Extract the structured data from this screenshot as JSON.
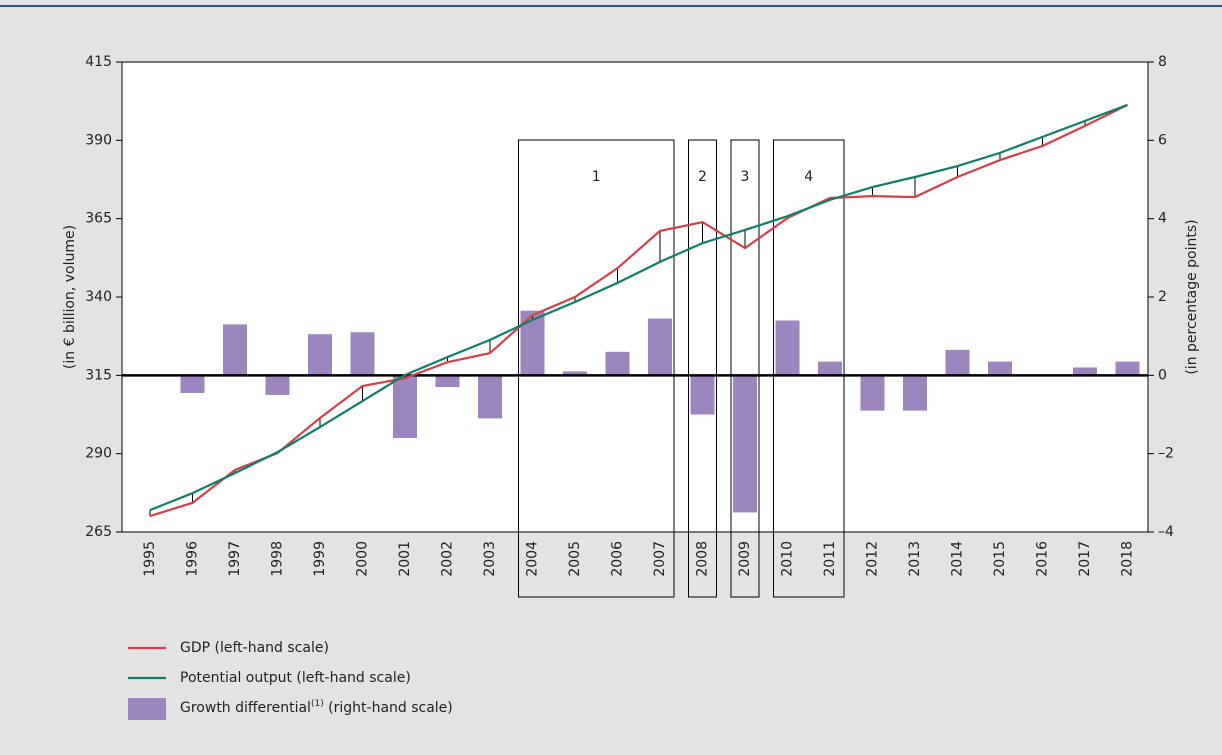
{
  "chart_data": {
    "type": "combo",
    "categories": [
      "1995",
      "1996",
      "1997",
      "1998",
      "1999",
      "2000",
      "2001",
      "2002",
      "2003",
      "2004",
      "2005",
      "2006",
      "2007",
      "2008",
      "2009",
      "2010",
      "2011",
      "2012",
      "2013",
      "2014",
      "2015",
      "2016",
      "2017",
      "2018"
    ],
    "ylabel": "(in € billion, volume)",
    "y2label": "(in percentage points)",
    "ylim": [
      265,
      415
    ],
    "yticks": [
      265,
      290,
      315,
      340,
      365,
      390,
      415
    ],
    "y2lim": [
      -4,
      8
    ],
    "y2ticks": [
      {
        "value": -4,
        "label": "–4"
      },
      {
        "value": -2,
        "label": "–2"
      },
      0,
      2,
      4,
      6,
      8
    ],
    "series": [
      {
        "name": "GDP (left-hand scale)",
        "type": "line",
        "color": "#d2404a",
        "values": [
          270.1,
          274.3,
          284.8,
          290.2,
          301.4,
          311.6,
          314.1,
          319.2,
          322.1,
          334.2,
          340,
          349.2,
          361.1,
          363.9,
          355.6,
          365.2,
          371.6,
          372.2,
          371.9,
          378.3,
          383.7,
          388.2,
          394.6,
          401.3
        ]
      },
      {
        "name": "Potential output (left-hand scale)",
        "type": "line",
        "color": "#0f7f68",
        "values": [
          272,
          277.4,
          283.8,
          290.5,
          298.5,
          306.8,
          315.1,
          320.8,
          326.3,
          332.7,
          338.4,
          344.5,
          351.2,
          357.2,
          361.4,
          365.8,
          371,
          375.1,
          378.3,
          381.8,
          386,
          391.1,
          396.2,
          401.3
        ]
      },
      {
        "name": "Growth differential",
        "name_note": "(1)",
        "name_suffix": "(right-hand scale)",
        "type": "bar",
        "axis": "y2",
        "color": "#9b86bd",
        "values": [
          null,
          -0.45,
          1.3,
          -0.5,
          1.05,
          1.1,
          -1.6,
          -0.3,
          -1.1,
          1.65,
          0.1,
          0.6,
          1.45,
          -1.0,
          -3.5,
          1.4,
          0.35,
          -0.9,
          -0.9,
          0.65,
          0.35,
          0,
          0.2,
          0.35
        ]
      }
    ],
    "periods": [
      {
        "label": "1",
        "start": "2004",
        "end": "2007"
      },
      {
        "label": "2",
        "start": "2008",
        "end": "2008"
      },
      {
        "label": "3",
        "start": "2009",
        "end": "2009"
      },
      {
        "label": "4",
        "start": "2010",
        "end": "2011"
      }
    ]
  }
}
